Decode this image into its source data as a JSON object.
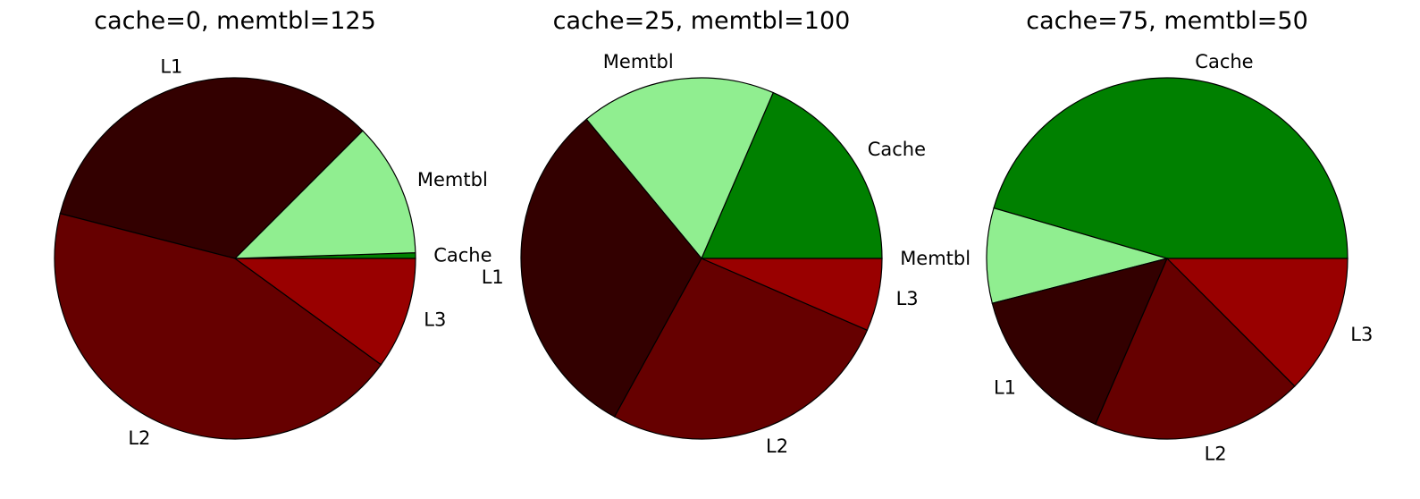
{
  "chart_data": [
    {
      "type": "pie",
      "title": "cache=0, memtbl=125",
      "slices": [
        {
          "label": "Cache",
          "value": 0.5,
          "color": "#008000"
        },
        {
          "label": "Memtbl",
          "value": 12.0,
          "color": "#90ee90"
        },
        {
          "label": "L1",
          "value": 33.5,
          "color": "#330000"
        },
        {
          "label": "L2",
          "value": 44.0,
          "color": "#660000"
        },
        {
          "label": "L3",
          "value": 10.0,
          "color": "#990000"
        }
      ]
    },
    {
      "type": "pie",
      "title": "cache=25, memtbl=100",
      "slices": [
        {
          "label": "Cache",
          "value": 18.5,
          "color": "#008000"
        },
        {
          "label": "Memtbl",
          "value": 17.5,
          "color": "#90ee90"
        },
        {
          "label": "L1",
          "value": 31.0,
          "color": "#330000"
        },
        {
          "label": "L2",
          "value": 26.5,
          "color": "#660000"
        },
        {
          "label": "L3",
          "value": 6.5,
          "color": "#990000"
        },
        {
          "label": "Memtbl",
          "value": 0.0,
          "color": "#90ee90"
        }
      ]
    },
    {
      "type": "pie",
      "title": "cache=75, memtbl=50",
      "slices": [
        {
          "label": "Cache",
          "value": 45.5,
          "color": "#008000"
        },
        {
          "label": "",
          "value": 8.5,
          "color": "#90ee90"
        },
        {
          "label": "L1",
          "value": 14.5,
          "color": "#330000"
        },
        {
          "label": "L2",
          "value": 19.0,
          "color": "#660000"
        },
        {
          "label": "L3",
          "value": 12.5,
          "color": "#990000"
        }
      ]
    }
  ]
}
